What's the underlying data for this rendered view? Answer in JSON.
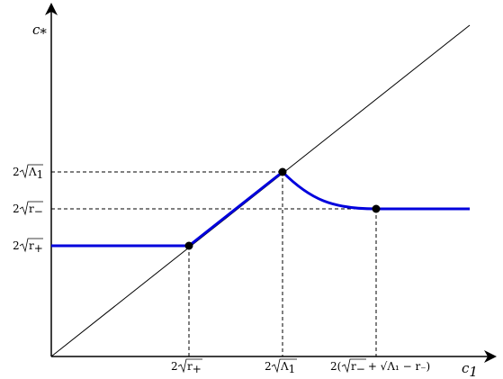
{
  "axes": {
    "x_label": "c",
    "x_label_sub": "1",
    "y_label": "c",
    "y_label_sub": "*"
  },
  "x_ticks": [
    {
      "id": "r-plus",
      "pre": "2",
      "radicand": "r",
      "sub": "+",
      "post": ""
    },
    {
      "id": "lambda-1",
      "pre": "2",
      "radicand": "Λ",
      "sub": "1",
      "post": ""
    },
    {
      "id": "combo",
      "pre": "2(",
      "radicand": "r",
      "sub": "−",
      "post": "+ √Λ₁ − r₋)"
    }
  ],
  "y_ticks": [
    {
      "id": "lambda-1",
      "pre": "2",
      "radicand": "Λ",
      "sub": "1"
    },
    {
      "id": "r-minus",
      "pre": "2",
      "radicand": "r",
      "sub": "−"
    },
    {
      "id": "r-plus",
      "pre": "2",
      "radicand": "r",
      "sub": "+"
    }
  ],
  "colors": {
    "curve": "#0000dd",
    "axis": "#000000",
    "diagonal": "#000000",
    "guides": "#000000",
    "points": "#000000"
  },
  "icons": {
    "x_axis_arrow": "arrow-right-icon",
    "y_axis_arrow": "arrow-up-icon"
  }
}
